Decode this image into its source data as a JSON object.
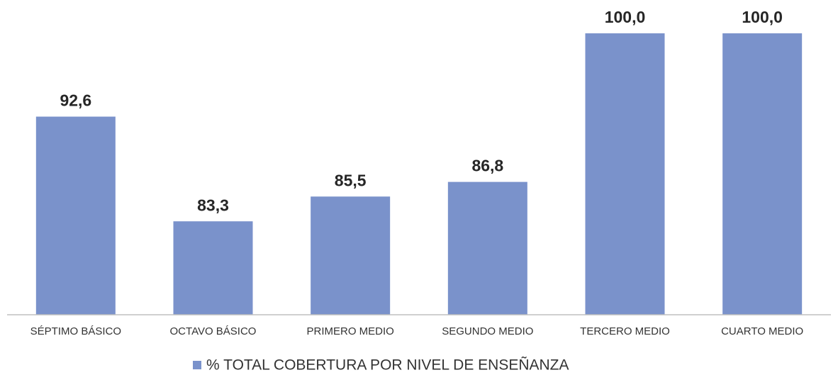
{
  "chart_data": {
    "type": "bar",
    "categories": [
      "SÉPTIMO BÁSICO",
      "OCTAVO BÁSICO",
      "PRIMERO MEDIO",
      "SEGUNDO MEDIO",
      "TERCERO MEDIO",
      "CUARTO MEDIO"
    ],
    "series": [
      {
        "name": "% TOTAL COBERTURA POR NIVEL DE ENSEÑANZA",
        "color": "#7a92cb",
        "values": [
          92.6,
          83.3,
          85.5,
          86.8,
          100,
          100
        ],
        "value_labels": [
          "92,6",
          "83,3",
          "85,5",
          "86,8",
          "100,0",
          "100,0"
        ]
      }
    ],
    "ylim": [
      75,
      100
    ],
    "grid": false,
    "legend": "bottom"
  }
}
